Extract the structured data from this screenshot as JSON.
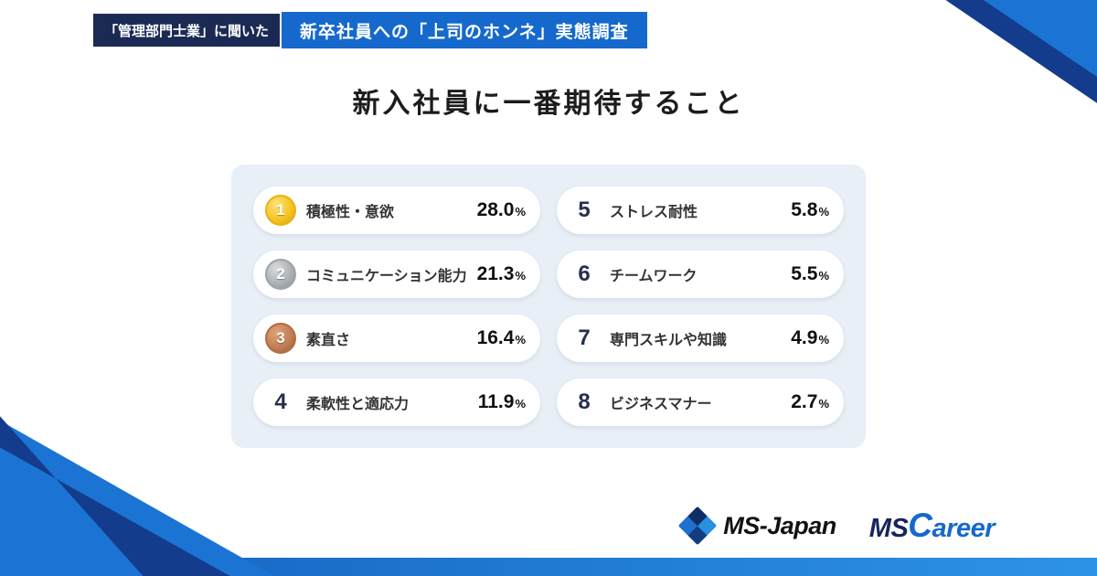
{
  "header": {
    "badge": "「管理部門士業」に聞いた",
    "banner": "新卒社員への「上司のホンネ」実態調査"
  },
  "title": "新入社員に一番期待すること",
  "ranking": {
    "items": [
      {
        "rank": "1",
        "label": "積極性・意欲",
        "value": "28.0",
        "unit": "%",
        "medal": "gold"
      },
      {
        "rank": "2",
        "label": "コミュニケーション能力",
        "value": "21.3",
        "unit": "%",
        "medal": "silver"
      },
      {
        "rank": "3",
        "label": "素直さ",
        "value": "16.4",
        "unit": "%",
        "medal": "bronze"
      },
      {
        "rank": "4",
        "label": "柔軟性と適応力",
        "value": "11.9",
        "unit": "%",
        "medal": "none"
      },
      {
        "rank": "5",
        "label": "ストレス耐性",
        "value": "5.8",
        "unit": "%",
        "medal": "none"
      },
      {
        "rank": "6",
        "label": "チームワーク",
        "value": "5.5",
        "unit": "%",
        "medal": "none"
      },
      {
        "rank": "7",
        "label": "専門スキルや知識",
        "value": "4.9",
        "unit": "%",
        "medal": "none"
      },
      {
        "rank": "8",
        "label": "ビジネスマナー",
        "value": "2.7",
        "unit": "%",
        "medal": "none"
      }
    ]
  },
  "footer": {
    "ms_japan_label": "MS-Japan",
    "ms_career_prefix": "MS",
    "ms_career_suffix": "Career"
  },
  "colors": {
    "banner_blue": "#1569CC",
    "badge_navy": "#1B2A55",
    "deco_light_blue": "#1B74D4",
    "deco_dark_navy": "#143C8C",
    "panel_bg": "#E8EFF7",
    "medal_gold": "#F4C21F",
    "medal_silver": "#A9AEB2",
    "medal_bronze": "#BF7B52"
  },
  "chart_data": {
    "type": "table",
    "title": "新入社員に一番期待すること",
    "categories": [
      "積極性・意欲",
      "コミュニケーション能力",
      "素直さ",
      "柔軟性と適応力",
      "ストレス耐性",
      "チームワーク",
      "専門スキルや知識",
      "ビジネスマナー"
    ],
    "values": [
      28.0,
      21.3,
      16.4,
      11.9,
      5.8,
      5.5,
      4.9,
      2.7
    ],
    "unit": "%",
    "layout": "ranked list, two columns, ranks 1-4 left and 5-8 right, medals for top 3"
  }
}
